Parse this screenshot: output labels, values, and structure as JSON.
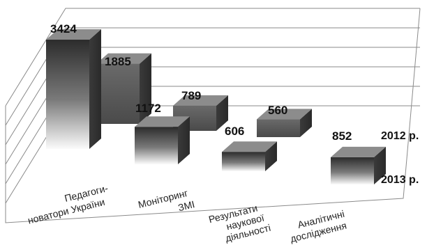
{
  "chart_data": {
    "type": "bar",
    "subtype": "3d-grouped",
    "title": "",
    "xlabel": "",
    "ylabel": "",
    "categories": [
      [
        "Педагоги-",
        "новатори України"
      ],
      [
        "Моніторинг",
        "ЗМІ"
      ],
      [
        "Результати",
        "наукової",
        "діяльності"
      ],
      [
        "Аналітичні",
        "дослідження"
      ]
    ],
    "series": [
      {
        "name": "2012 р.",
        "values": [
          1885,
          789,
          560,
          null
        ],
        "color": "#5e5e5e"
      },
      {
        "name": "2013 р.",
        "values": [
          3424,
          1172,
          606,
          852
        ],
        "color": "#3a3a3a"
      }
    ],
    "value_labels": [
      [
        "3424",
        "1885"
      ],
      [
        "1172",
        "789"
      ],
      [
        "606",
        "560"
      ],
      [
        "852",
        ""
      ]
    ],
    "series_labels": [
      "2012 р.",
      "2013 р."
    ],
    "ylim": [
      0,
      3500
    ],
    "grid": true,
    "legend": "none"
  }
}
